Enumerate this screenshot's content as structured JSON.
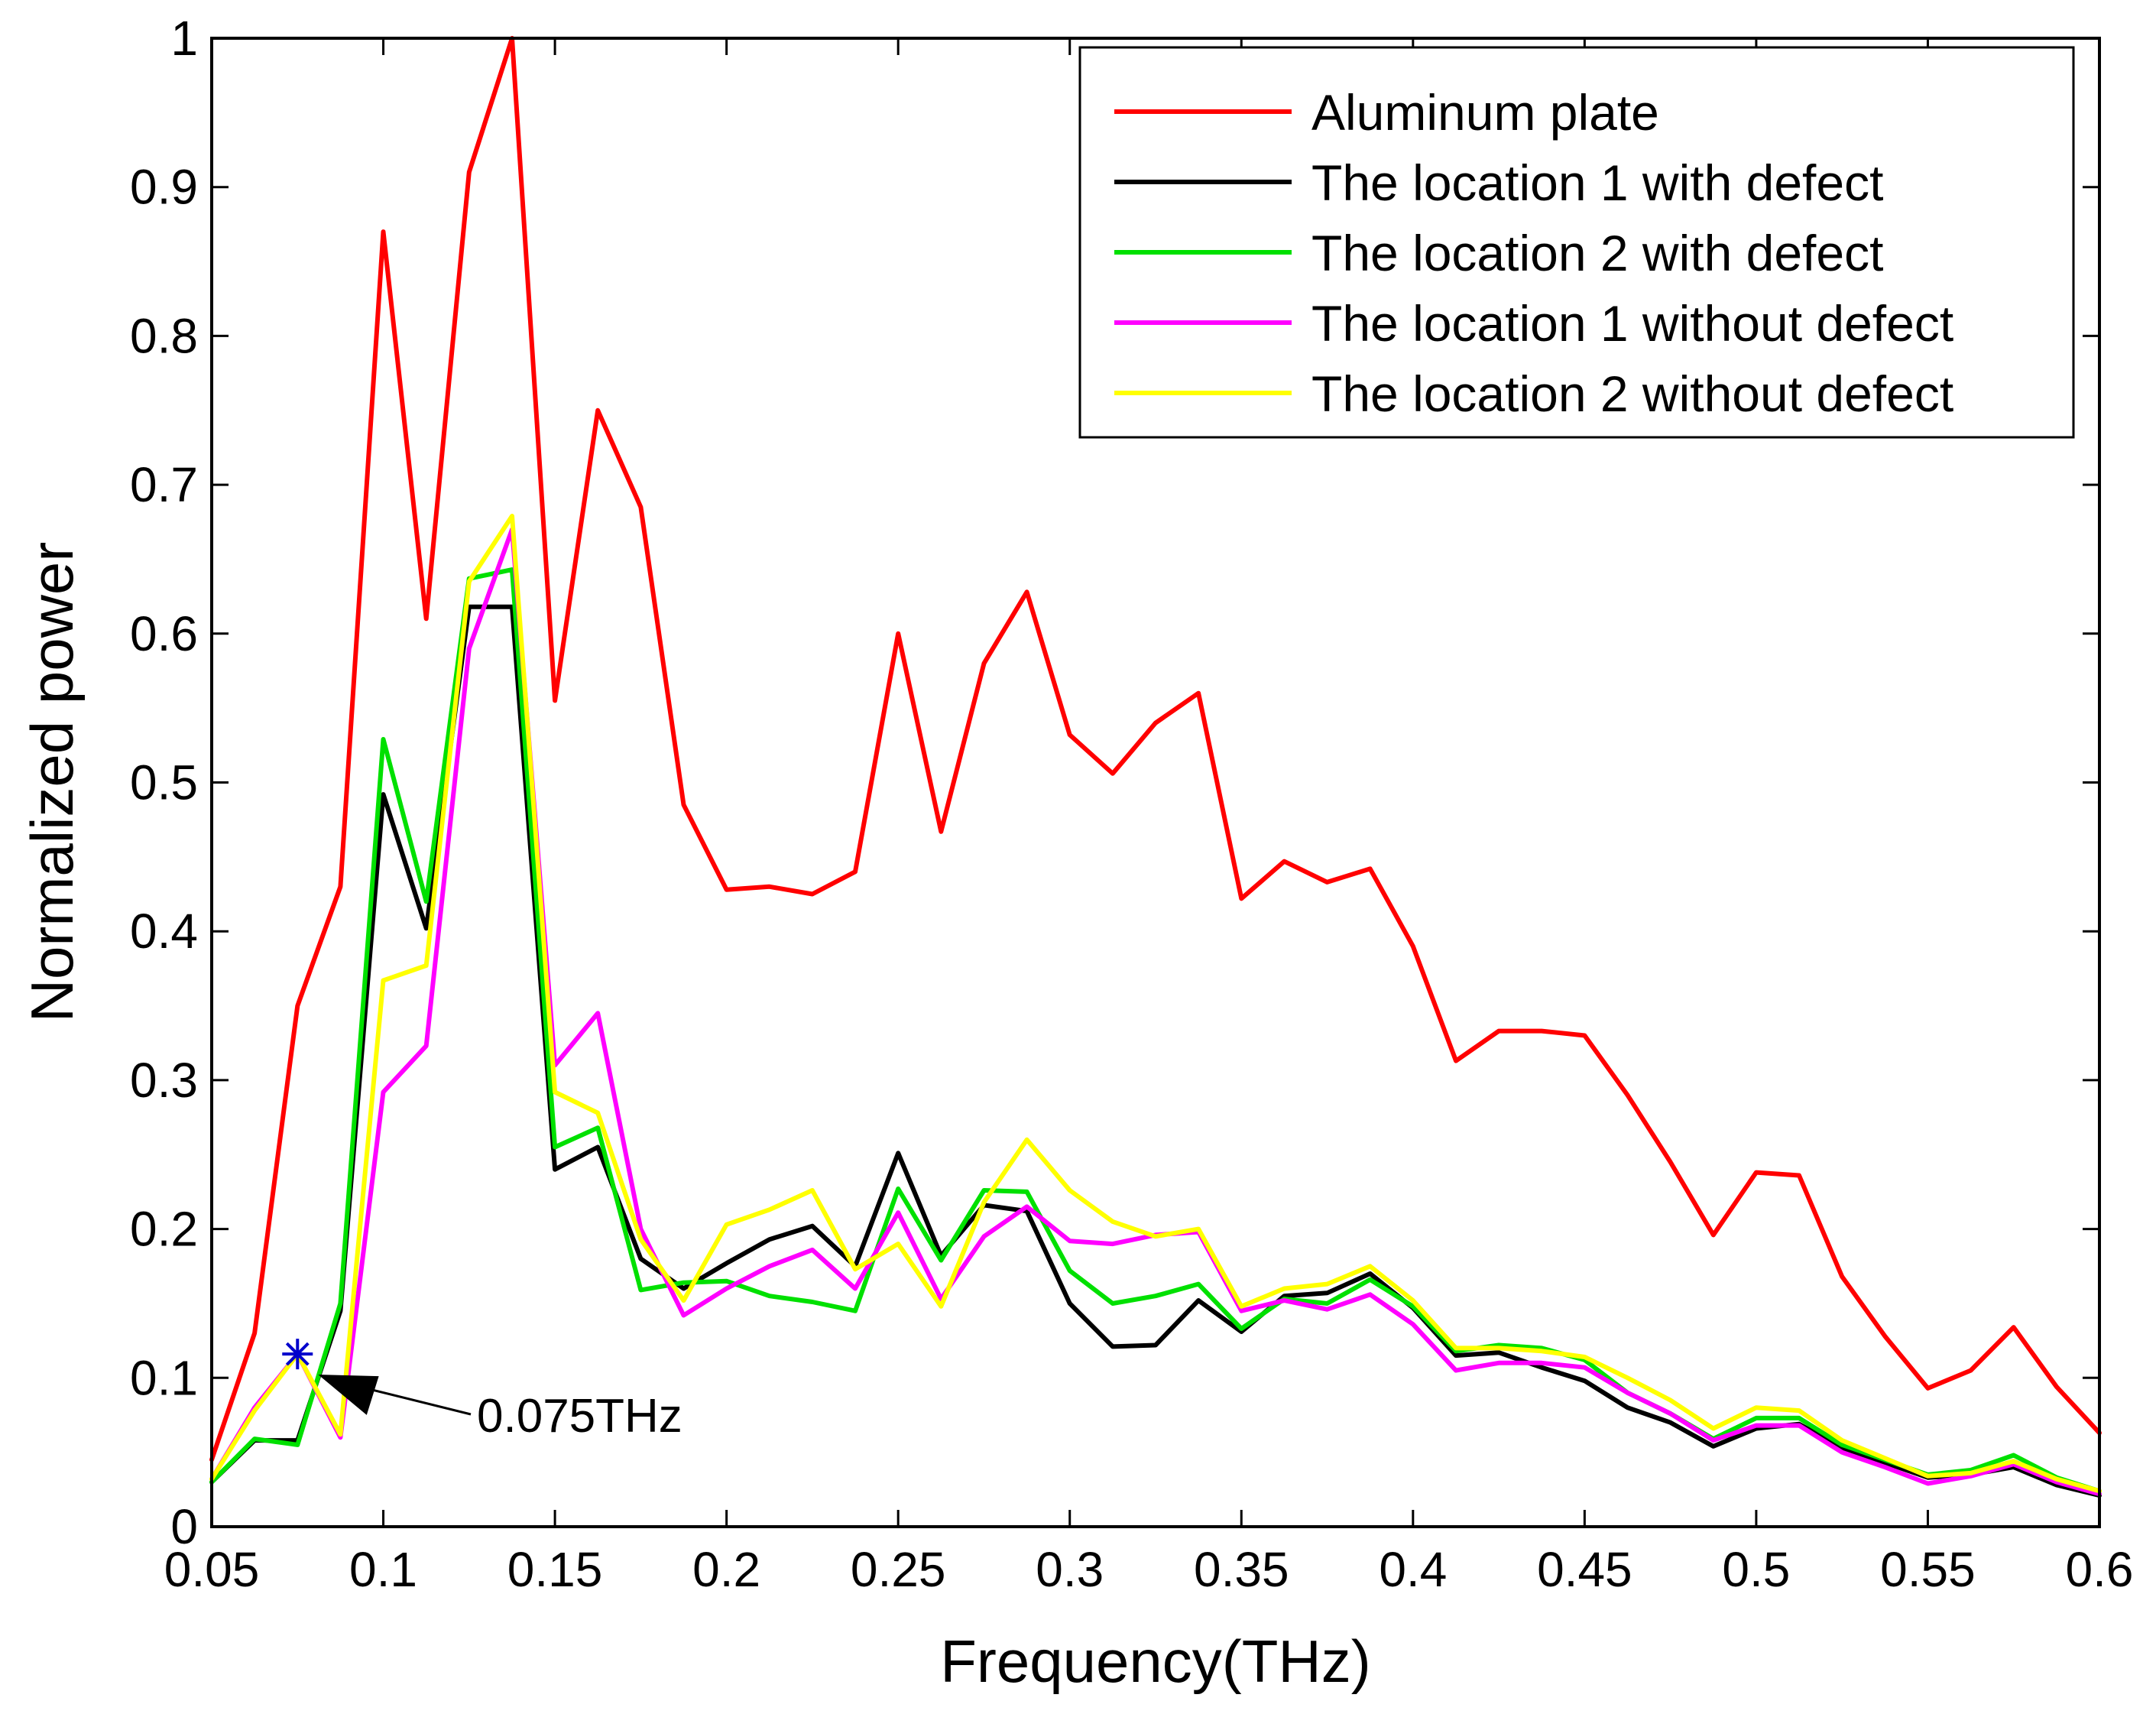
{
  "chart_data": {
    "type": "line",
    "title": "",
    "xlabel": "Frequency(THz)",
    "ylabel": "Normalized power",
    "xlim": [
      0.05,
      0.6
    ],
    "ylim": [
      0,
      1
    ],
    "xticks": [
      0.05,
      0.1,
      0.15,
      0.2,
      0.25,
      0.3,
      0.35,
      0.4,
      0.45,
      0.5,
      0.55,
      0.6
    ],
    "xtick_labels": [
      "0.05",
      "0.1",
      "0.15",
      "0.2",
      "0.25",
      "0.3",
      "0.35",
      "0.4",
      "0.45",
      "0.5",
      "0.55",
      "0.6"
    ],
    "yticks": [
      0,
      0.1,
      0.2,
      0.3,
      0.4,
      0.5,
      0.6,
      0.7,
      0.8,
      0.9,
      1
    ],
    "ytick_labels": [
      "0",
      "0.1",
      "0.2",
      "0.3",
      "0.4",
      "0.5",
      "0.6",
      "0.7",
      "0.8",
      "0.9",
      "1"
    ],
    "grid": false,
    "legend_position": "top-right",
    "x": [
      0.05,
      0.0625,
      0.075,
      0.0875,
      0.1,
      0.1125,
      0.125,
      0.1375,
      0.15,
      0.1625,
      0.175,
      0.1875,
      0.2,
      0.2125,
      0.225,
      0.2375,
      0.25,
      0.2625,
      0.275,
      0.2875,
      0.3,
      0.3125,
      0.325,
      0.3375,
      0.35,
      0.3625,
      0.375,
      0.3875,
      0.4,
      0.4125,
      0.425,
      0.4375,
      0.45,
      0.4625,
      0.475,
      0.4875,
      0.5,
      0.5125,
      0.525,
      0.5375,
      0.55,
      0.5625,
      0.575,
      0.5875,
      0.6
    ],
    "series": [
      {
        "name": "Aluminum plate",
        "color": "#ff0000",
        "values": [
          0.045,
          0.13,
          0.35,
          0.43,
          0.87,
          0.61,
          0.91,
          1.0,
          0.555,
          0.75,
          0.685,
          0.485,
          0.428,
          0.43,
          0.425,
          0.44,
          0.6,
          0.467,
          0.58,
          0.628,
          0.532,
          0.506,
          0.54,
          0.56,
          0.422,
          0.447,
          0.433,
          0.442,
          0.39,
          0.313,
          0.333,
          0.333,
          0.33,
          0.29,
          0.245,
          0.196,
          0.238,
          0.236,
          0.168,
          0.128,
          0.093,
          0.105,
          0.134,
          0.094,
          0.063
        ]
      },
      {
        "name": "The location 1 with defect",
        "color": "#000000",
        "values": [
          0.03,
          0.058,
          0.058,
          0.145,
          0.492,
          0.402,
          0.618,
          0.618,
          0.24,
          0.255,
          0.18,
          0.16,
          0.177,
          0.193,
          0.202,
          0.175,
          0.251,
          0.182,
          0.216,
          0.212,
          0.15,
          0.121,
          0.122,
          0.152,
          0.131,
          0.155,
          0.157,
          0.17,
          0.147,
          0.115,
          0.117,
          0.107,
          0.098,
          0.08,
          0.07,
          0.054,
          0.066,
          0.069,
          0.053,
          0.043,
          0.033,
          0.035,
          0.04,
          0.028,
          0.021
        ]
      },
      {
        "name": "The location 2 with defect",
        "color": "#00e000",
        "values": [
          0.03,
          0.059,
          0.055,
          0.15,
          0.529,
          0.42,
          0.637,
          0.643,
          0.255,
          0.268,
          0.159,
          0.164,
          0.165,
          0.155,
          0.151,
          0.145,
          0.227,
          0.179,
          0.226,
          0.225,
          0.172,
          0.15,
          0.155,
          0.163,
          0.133,
          0.153,
          0.15,
          0.166,
          0.148,
          0.118,
          0.122,
          0.12,
          0.112,
          0.09,
          0.076,
          0.059,
          0.073,
          0.073,
          0.055,
          0.045,
          0.035,
          0.038,
          0.048,
          0.033,
          0.024
        ]
      },
      {
        "name": "The location 1 without defect",
        "color": "#ff00ff",
        "values": [
          0.032,
          0.08,
          0.116,
          0.06,
          0.292,
          0.323,
          0.59,
          0.67,
          0.31,
          0.345,
          0.2,
          0.142,
          0.16,
          0.175,
          0.186,
          0.16,
          0.211,
          0.153,
          0.195,
          0.215,
          0.192,
          0.19,
          0.196,
          0.198,
          0.145,
          0.152,
          0.146,
          0.156,
          0.136,
          0.105,
          0.11,
          0.11,
          0.107,
          0.09,
          0.076,
          0.058,
          0.068,
          0.068,
          0.05,
          0.04,
          0.029,
          0.034,
          0.042,
          0.03,
          0.022
        ]
      },
      {
        "name": "The location 2 without defect",
        "color": "#ffff00",
        "values": [
          0.032,
          0.078,
          0.116,
          0.062,
          0.367,
          0.377,
          0.635,
          0.679,
          0.292,
          0.278,
          0.193,
          0.152,
          0.203,
          0.213,
          0.226,
          0.173,
          0.19,
          0.148,
          0.218,
          0.26,
          0.226,
          0.205,
          0.195,
          0.2,
          0.148,
          0.16,
          0.163,
          0.175,
          0.152,
          0.12,
          0.12,
          0.118,
          0.114,
          0.1,
          0.085,
          0.066,
          0.08,
          0.078,
          0.058,
          0.046,
          0.034,
          0.036,
          0.044,
          0.032,
          0.024
        ]
      }
    ],
    "annotations": [
      {
        "text": "0.075THz",
        "marker": "*",
        "marker_color": "#0000cc",
        "x": 0.075,
        "y": 0.116
      }
    ]
  }
}
